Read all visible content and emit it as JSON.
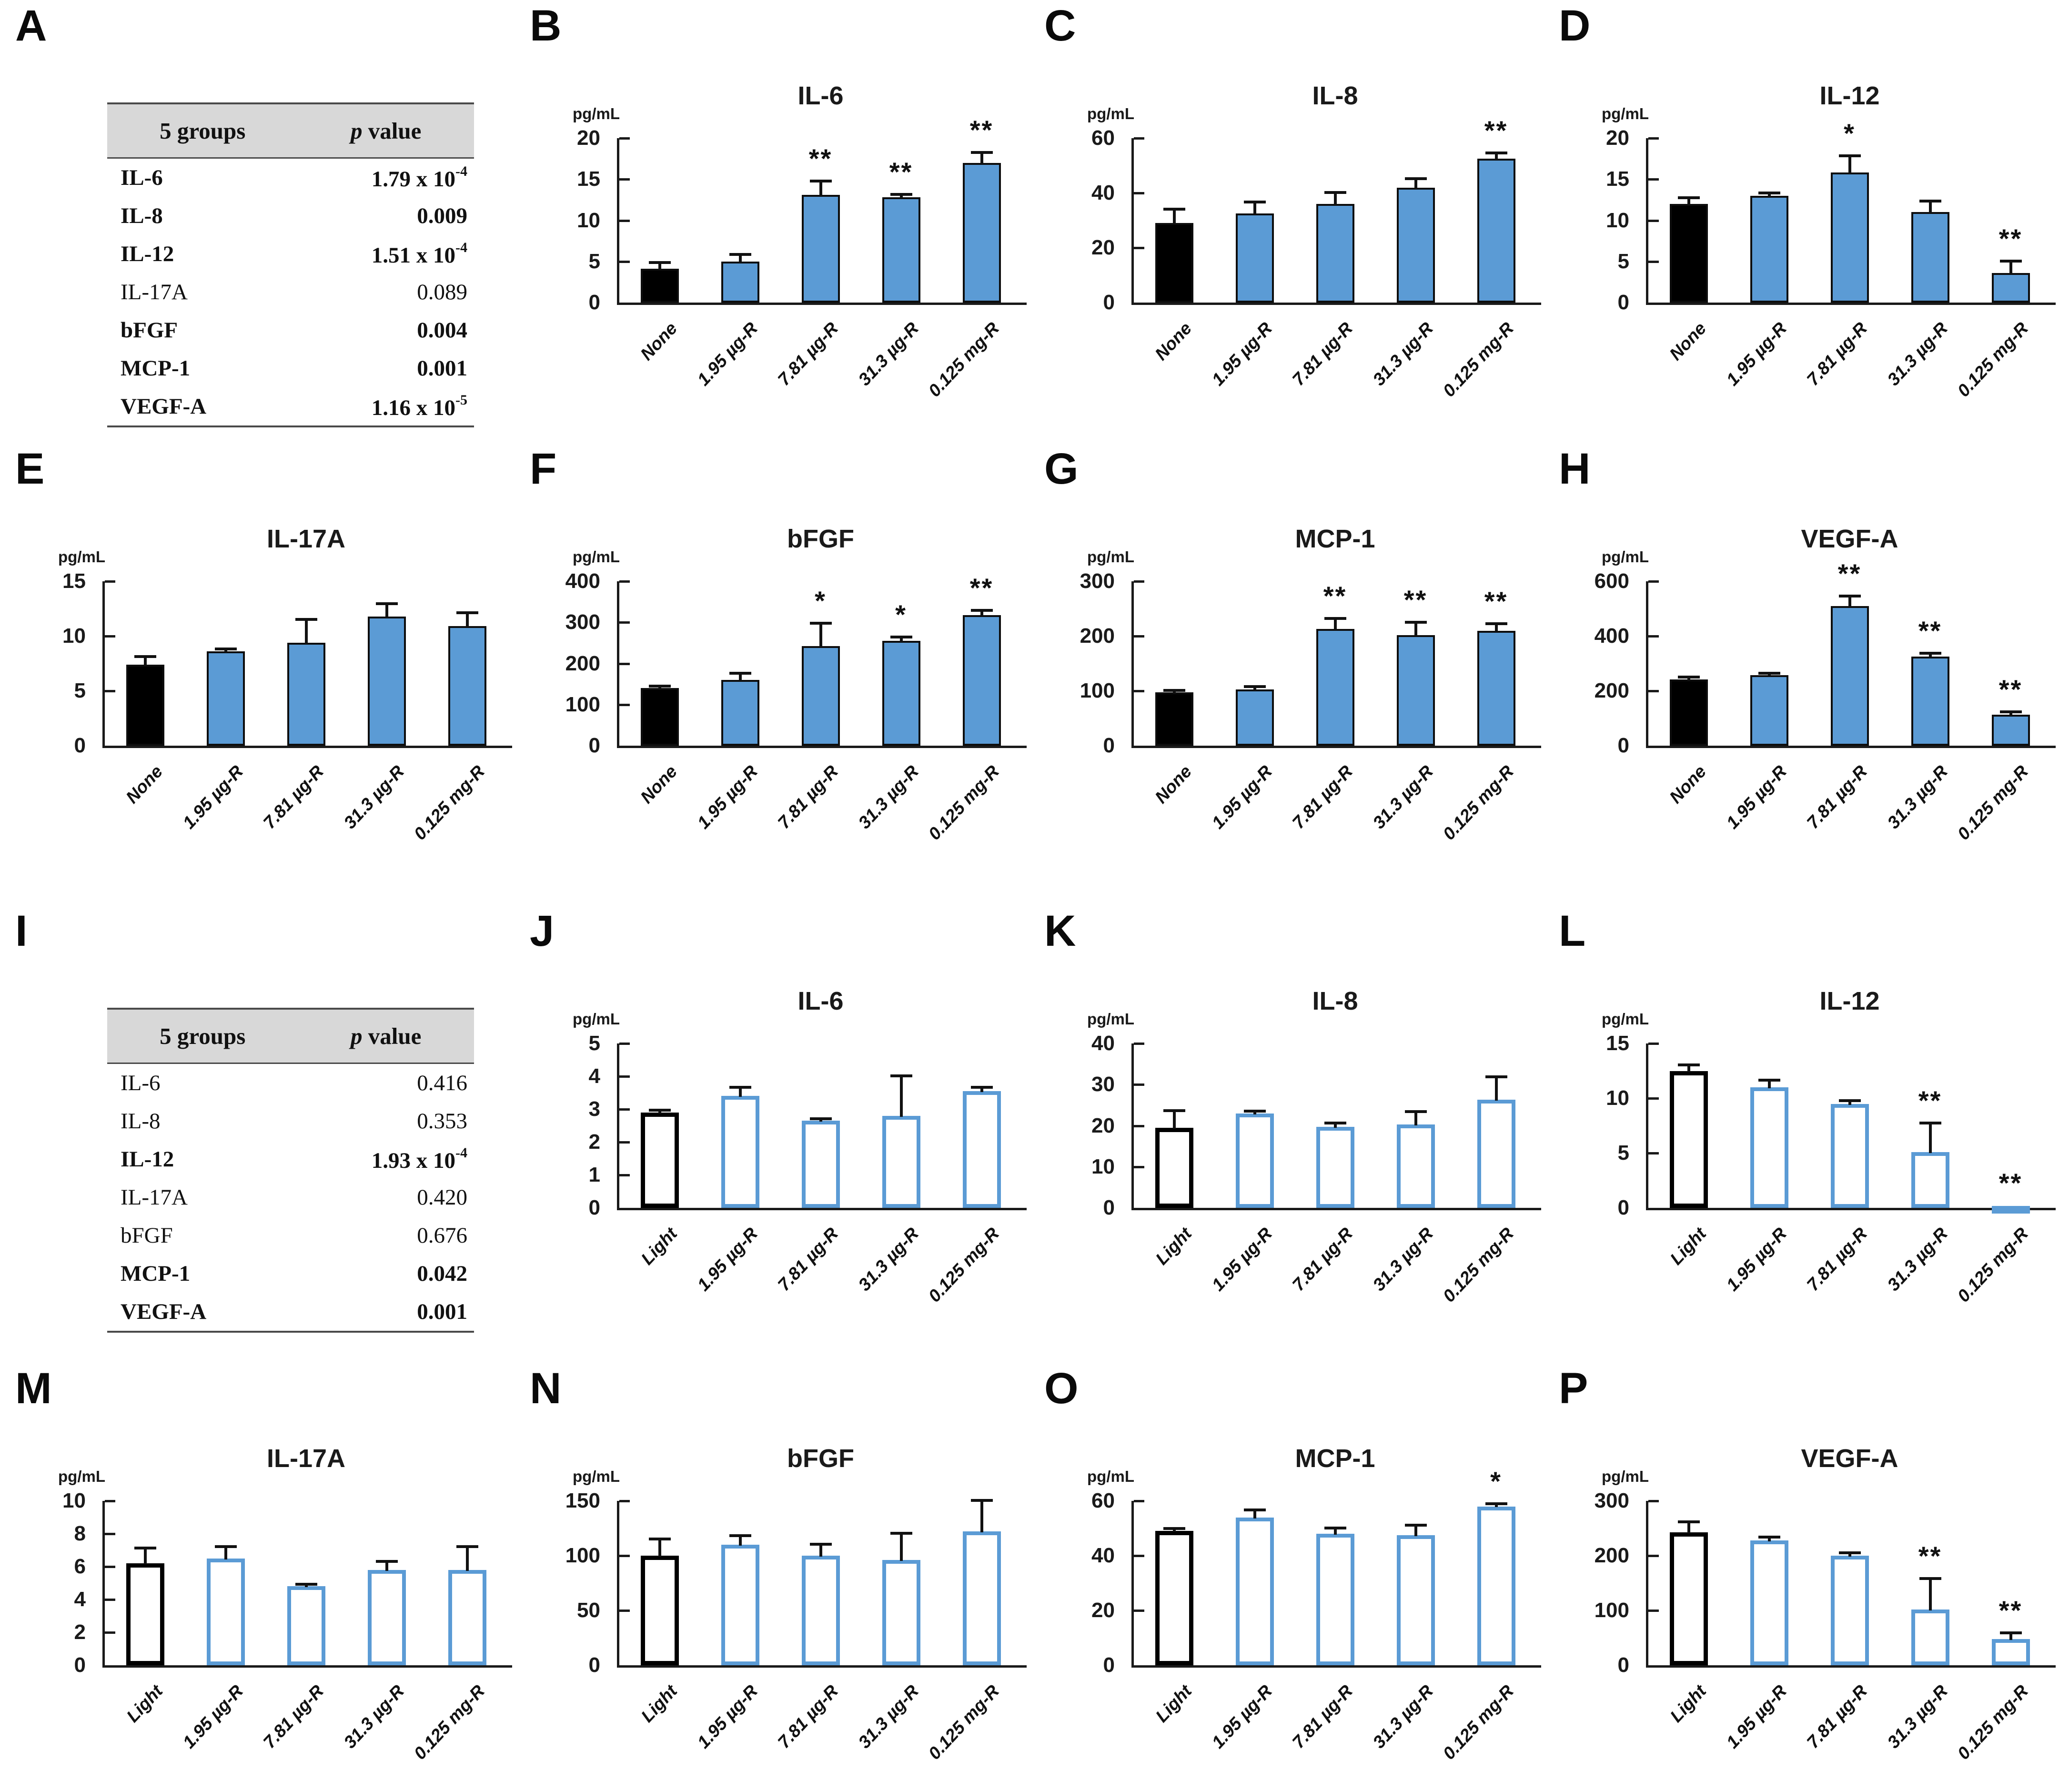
{
  "figure_title": "Cytokine and growth factor secretion p-value tables and bar charts",
  "colors": {
    "bar_blue": "#5b9bd5",
    "bar_black": "#000000",
    "axis": "#1a1a1a",
    "table_header_bg": "#d8d8d8"
  },
  "tables": [
    {
      "panel": "A",
      "col1_header": "5 groups",
      "col2_header_italic": "p",
      "col2_header_rest": " value",
      "rows": [
        {
          "label": "IL-6",
          "mantissa": "1.79 x 10",
          "exp": "-4",
          "bold": true
        },
        {
          "label": "IL-8",
          "mantissa": "0.009",
          "exp": "",
          "bold": true
        },
        {
          "label": "IL-12",
          "mantissa": "1.51 x 10",
          "exp": "-4",
          "bold": true
        },
        {
          "label": "IL-17A",
          "mantissa": "0.089",
          "exp": "",
          "bold": false
        },
        {
          "label": "bFGF",
          "mantissa": "0.004",
          "exp": "",
          "bold": true
        },
        {
          "label": "MCP-1",
          "mantissa": "0.001",
          "exp": "",
          "bold": true
        },
        {
          "label": "VEGF-A",
          "mantissa": "1.16 x 10",
          "exp": "-5",
          "bold": true
        }
      ]
    },
    {
      "panel": "I",
      "col1_header": "5 groups",
      "col2_header_italic": "p",
      "col2_header_rest": " value",
      "rows": [
        {
          "label": "IL-6",
          "mantissa": "0.416",
          "exp": "",
          "bold": false
        },
        {
          "label": "IL-8",
          "mantissa": "0.353",
          "exp": "",
          "bold": false
        },
        {
          "label": "IL-12",
          "mantissa": "1.93 x 10",
          "exp": "-4",
          "bold": true
        },
        {
          "label": "IL-17A",
          "mantissa": "0.420",
          "exp": "",
          "bold": false
        },
        {
          "label": "bFGF",
          "mantissa": "0.676",
          "exp": "",
          "bold": false
        },
        {
          "label": "MCP-1",
          "mantissa": "0.042",
          "exp": "",
          "bold": true
        },
        {
          "label": "VEGF-A",
          "mantissa": "0.001",
          "exp": "",
          "bold": true
        }
      ]
    }
  ],
  "chart_data": [
    {
      "panel": "B",
      "type": "bar",
      "title": "IL-6",
      "ylabel": "pg/mL",
      "ylim": [
        0,
        20
      ],
      "yticks": [
        0,
        5,
        10,
        15,
        20
      ],
      "categories": [
        "None",
        "1.95 µg-R",
        "7.81 µg-R",
        "31.3 µg-R",
        "0.125 mg-R"
      ],
      "values": [
        4.1,
        5.0,
        13.1,
        12.8,
        17.0
      ],
      "errors": [
        0.7,
        0.8,
        1.6,
        0.3,
        1.2
      ],
      "sig": [
        "",
        "",
        "**",
        "**",
        "**"
      ],
      "bar_style": "filled"
    },
    {
      "panel": "C",
      "type": "bar",
      "title": "IL-8",
      "ylabel": "pg/mL",
      "ylim": [
        0,
        60
      ],
      "yticks": [
        0,
        20,
        40,
        60
      ],
      "categories": [
        "None",
        "1.95 µg-R",
        "7.81 µg-R",
        "31.3 µg-R",
        "0.125 mg-R"
      ],
      "values": [
        29,
        32.5,
        36,
        42,
        52.5
      ],
      "errors": [
        5,
        4,
        4,
        3,
        2
      ],
      "sig": [
        "",
        "",
        "",
        "",
        "**"
      ],
      "bar_style": "filled"
    },
    {
      "panel": "D",
      "type": "bar",
      "title": "IL-12",
      "ylabel": "pg/mL",
      "ylim": [
        0,
        20
      ],
      "yticks": [
        0,
        5,
        10,
        15,
        20
      ],
      "categories": [
        "None",
        "1.95 µg-R",
        "7.81 µg-R",
        "31.3 µg-R",
        "0.125 mg-R"
      ],
      "values": [
        12,
        13,
        15.8,
        11,
        3.6
      ],
      "errors": [
        0.7,
        0.3,
        2.0,
        1.3,
        1.4
      ],
      "sig": [
        "",
        "",
        "*",
        "",
        "**"
      ],
      "bar_style": "filled"
    },
    {
      "panel": "E",
      "type": "bar",
      "title": "IL-17A",
      "ylabel": "pg/mL",
      "ylim": [
        0,
        15
      ],
      "yticks": [
        0,
        5,
        10,
        15
      ],
      "categories": [
        "None",
        "1.95 µg-R",
        "7.81 µg-R",
        "31.3 µg-R",
        "0.125 mg-R"
      ],
      "values": [
        7.4,
        8.6,
        9.4,
        11.8,
        10.9
      ],
      "errors": [
        0.7,
        0.2,
        2.1,
        1.1,
        1.2
      ],
      "sig": [
        "",
        "",
        "",
        "",
        ""
      ],
      "bar_style": "filled"
    },
    {
      "panel": "F",
      "type": "bar",
      "title": "bFGF",
      "ylabel": "pg/mL",
      "ylim": [
        0,
        400
      ],
      "yticks": [
        0,
        100,
        200,
        300,
        400
      ],
      "categories": [
        "None",
        "1.95 µg-R",
        "7.81 µg-R",
        "31.3 µg-R",
        "0.125 mg-R"
      ],
      "values": [
        140,
        160,
        242,
        255,
        318
      ],
      "errors": [
        4,
        15,
        55,
        8,
        10
      ],
      "sig": [
        "",
        "",
        "*",
        "*",
        "**"
      ],
      "bar_style": "filled"
    },
    {
      "panel": "G",
      "type": "bar",
      "title": "MCP-1",
      "ylabel": "pg/mL",
      "ylim": [
        0,
        300
      ],
      "yticks": [
        0,
        100,
        200,
        300
      ],
      "categories": [
        "None",
        "1.95 µg-R",
        "7.81 µg-R",
        "31.3 µg-R",
        "0.125 mg-R"
      ],
      "values": [
        97,
        103,
        213,
        202,
        210
      ],
      "errors": [
        3,
        4,
        18,
        22,
        12
      ],
      "sig": [
        "",
        "",
        "**",
        "**",
        "**"
      ],
      "bar_style": "filled"
    },
    {
      "panel": "H",
      "type": "bar",
      "title": "VEGF-A",
      "ylabel": "pg/mL",
      "ylim": [
        0,
        600
      ],
      "yticks": [
        0,
        200,
        400,
        600
      ],
      "categories": [
        "None",
        "1.95 µg-R",
        "7.81 µg-R",
        "31.3 µg-R",
        "0.125 mg-R"
      ],
      "values": [
        242,
        257,
        510,
        325,
        113
      ],
      "errors": [
        6,
        5,
        35,
        10,
        8
      ],
      "sig": [
        "",
        "",
        "**",
        "**",
        "**"
      ],
      "bar_style": "filled"
    },
    {
      "panel": "J",
      "type": "bar",
      "title": "IL-6",
      "ylabel": "pg/mL",
      "ylim": [
        0,
        5
      ],
      "yticks": [
        0,
        1,
        2,
        3,
        4,
        5
      ],
      "categories": [
        "Light",
        "1.95 µg-R",
        "7.81 µg-R",
        "31.3 µg-R",
        "0.125 mg-R"
      ],
      "values": [
        2.9,
        3.4,
        2.65,
        2.8,
        3.55
      ],
      "errors": [
        0.05,
        0.25,
        0.05,
        1.2,
        0.1
      ],
      "sig": [
        "",
        "",
        "",
        "",
        ""
      ],
      "bar_style": "outline"
    },
    {
      "panel": "K",
      "type": "bar",
      "title": "IL-8",
      "ylabel": "pg/mL",
      "ylim": [
        0,
        40
      ],
      "yticks": [
        0,
        10,
        20,
        30,
        40
      ],
      "categories": [
        "Light",
        "1.95 µg-R",
        "7.81 µg-R",
        "31.3 µg-R",
        "0.125 mg-R"
      ],
      "values": [
        19.5,
        23,
        19.7,
        20.3,
        26.3
      ],
      "errors": [
        4,
        0.4,
        0.8,
        3,
        5.5
      ],
      "sig": [
        "",
        "",
        "",
        "",
        ""
      ],
      "bar_style": "outline"
    },
    {
      "panel": "L",
      "type": "bar",
      "title": "IL-12",
      "ylabel": "pg/mL",
      "ylim": [
        0,
        15
      ],
      "yticks": [
        0,
        5,
        10,
        15
      ],
      "categories": [
        "Light",
        "1.95 µg-R",
        "7.81 µg-R",
        "31.3 µg-R",
        "0.125 mg-R"
      ],
      "values": [
        12.5,
        11,
        9.5,
        5.1,
        0.05
      ],
      "errors": [
        0.5,
        0.6,
        0.25,
        2.6,
        0
      ],
      "sig": [
        "",
        "",
        "",
        "**",
        "**"
      ],
      "bar_style": "outline"
    },
    {
      "panel": "M",
      "type": "bar",
      "title": "IL-17A",
      "ylabel": "pg/mL",
      "ylim": [
        0,
        10
      ],
      "yticks": [
        0,
        2,
        4,
        6,
        8,
        10
      ],
      "categories": [
        "Light",
        "1.95 µg-R",
        "7.81 µg-R",
        "31.3 µg-R",
        "0.125 mg-R"
      ],
      "values": [
        6.2,
        6.5,
        4.8,
        5.8,
        5.8
      ],
      "errors": [
        0.9,
        0.7,
        0.1,
        0.5,
        1.4
      ],
      "sig": [
        "",
        "",
        "",
        "",
        ""
      ],
      "bar_style": "outline"
    },
    {
      "panel": "N",
      "type": "bar",
      "title": "bFGF",
      "ylabel": "pg/mL",
      "ylim": [
        0,
        150
      ],
      "yticks": [
        0,
        50,
        100,
        150
      ],
      "categories": [
        "Light",
        "1.95 µg-R",
        "7.81 µg-R",
        "31.3 µg-R",
        "0.125 mg-R"
      ],
      "values": [
        100,
        110,
        100,
        96,
        122
      ],
      "errors": [
        15,
        8,
        10,
        24,
        28
      ],
      "sig": [
        "",
        "",
        "",
        "",
        ""
      ],
      "bar_style": "outline"
    },
    {
      "panel": "O",
      "type": "bar",
      "title": "MCP-1",
      "ylabel": "pg/mL",
      "ylim": [
        0,
        60
      ],
      "yticks": [
        0,
        20,
        40,
        60
      ],
      "categories": [
        "Light",
        "1.95 µg-R",
        "7.81 µg-R",
        "31.3 µg-R",
        "0.125 mg-R"
      ],
      "values": [
        49,
        54,
        48,
        47.5,
        58
      ],
      "errors": [
        0.8,
        2.5,
        2,
        3.5,
        0.8
      ],
      "sig": [
        "",
        "",
        "",
        "",
        "*"
      ],
      "bar_style": "outline"
    },
    {
      "panel": "P",
      "type": "bar",
      "title": "VEGF-A",
      "ylabel": "pg/mL",
      "ylim": [
        0,
        300
      ],
      "yticks": [
        0,
        100,
        200,
        300
      ],
      "categories": [
        "Light",
        "1.95 µg-R",
        "7.81 µg-R",
        "31.3 µg-R",
        "0.125 mg-R"
      ],
      "values": [
        243,
        228,
        200,
        102,
        48
      ],
      "errors": [
        18,
        5,
        4,
        55,
        10
      ],
      "sig": [
        "",
        "",
        "",
        "**",
        "**"
      ],
      "bar_style": "outline"
    }
  ]
}
